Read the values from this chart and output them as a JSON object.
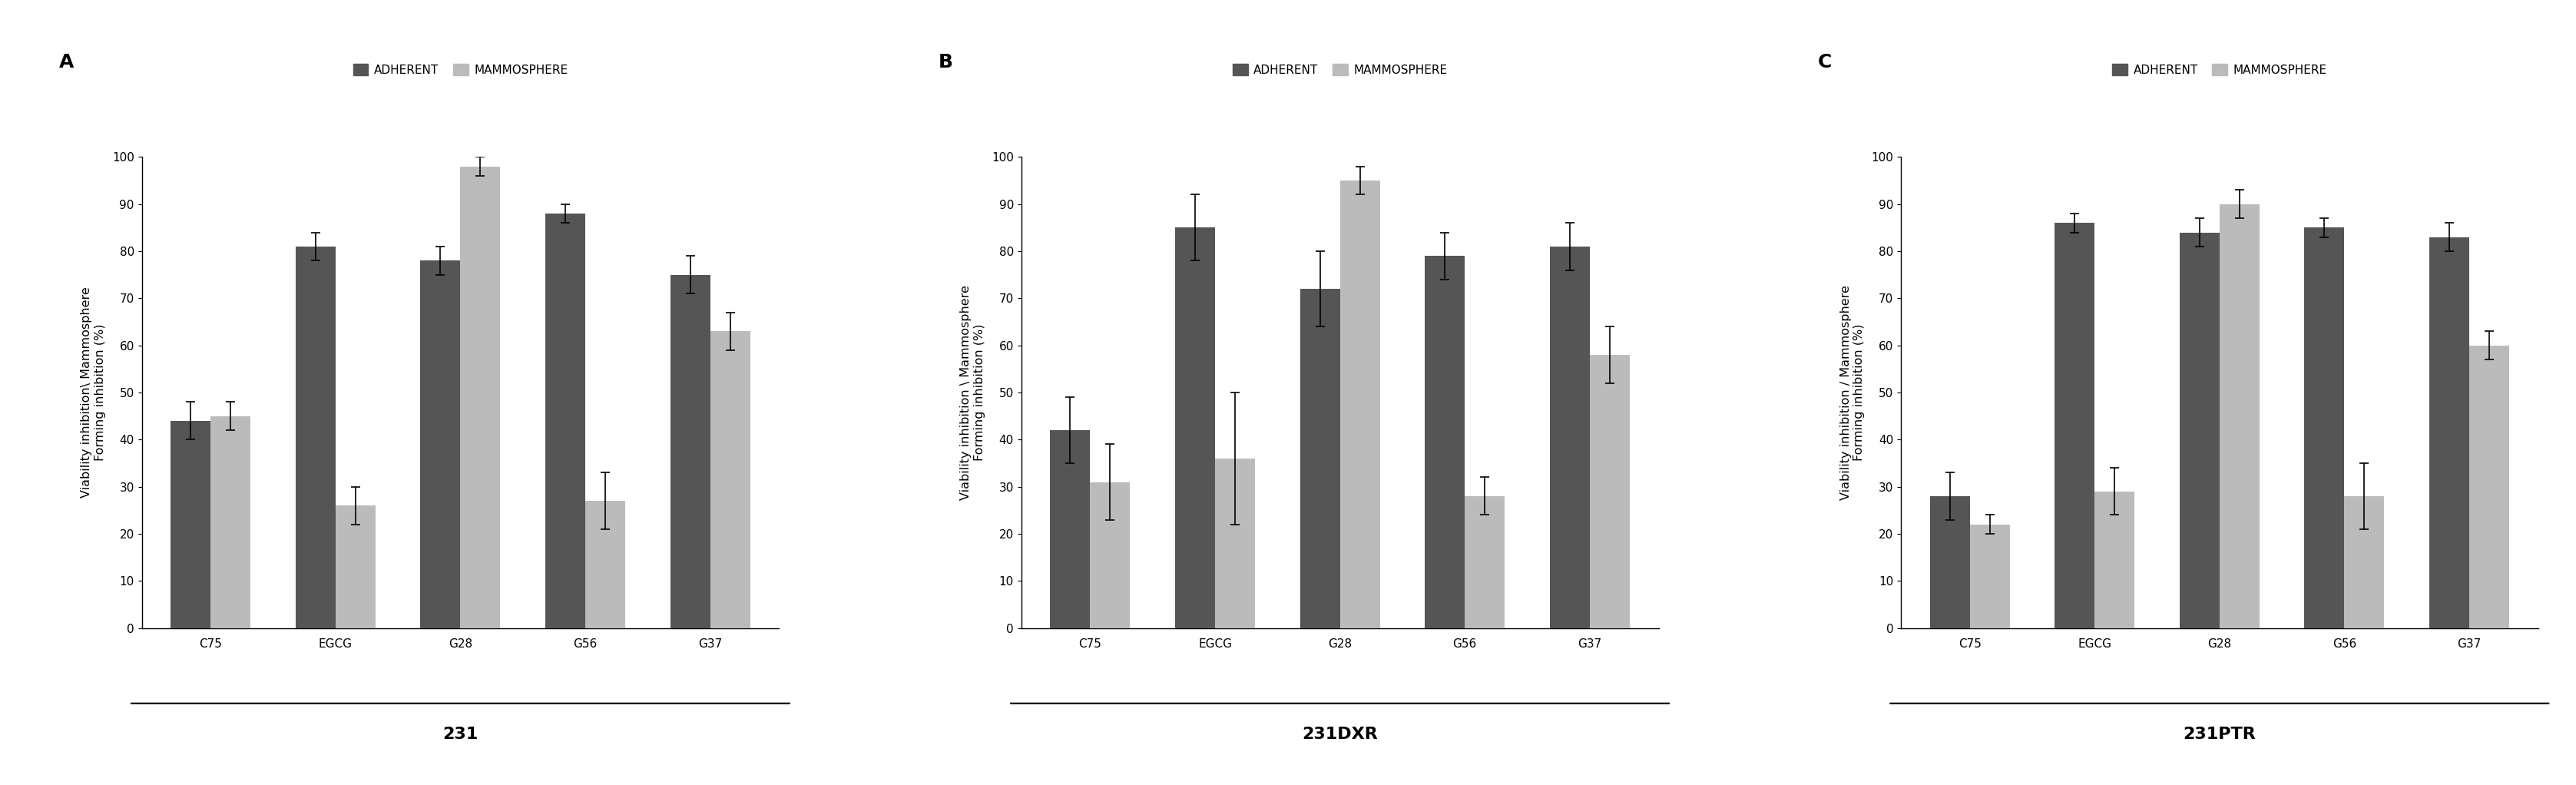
{
  "panels": [
    {
      "label": "A",
      "title": "231",
      "ylabel_line1": "Viability inhibition\\ Mammosphere",
      "ylabel_line2": "Forming inhibition (%)",
      "categories": [
        "C75",
        "EGCG",
        "G28",
        "G56",
        "G37"
      ],
      "adherent_values": [
        44,
        81,
        78,
        88,
        75
      ],
      "mammosphere_values": [
        45,
        26,
        98,
        27,
        63
      ],
      "adherent_errors": [
        4,
        3,
        3,
        2,
        4
      ],
      "mammosphere_errors": [
        3,
        4,
        2,
        6,
        4
      ]
    },
    {
      "label": "B",
      "title": "231DXR",
      "ylabel_line1": "Viability inhibition \\ Mammosphere",
      "ylabel_line2": "Forming inhibition (%)",
      "categories": [
        "C75",
        "EGCG",
        "G28",
        "G56",
        "G37"
      ],
      "adherent_values": [
        42,
        85,
        72,
        79,
        81
      ],
      "mammosphere_values": [
        31,
        36,
        95,
        28,
        58
      ],
      "adherent_errors": [
        7,
        7,
        8,
        5,
        5
      ],
      "mammosphere_errors": [
        8,
        14,
        3,
        4,
        6
      ]
    },
    {
      "label": "C",
      "title": "231PTR",
      "ylabel_line1": "Viability inhibition / Mammosphere",
      "ylabel_line2": "Forming inhibition (%)",
      "categories": [
        "C75",
        "EGCG",
        "G28",
        "G56",
        "G37"
      ],
      "adherent_values": [
        28,
        86,
        84,
        85,
        83
      ],
      "mammosphere_values": [
        22,
        29,
        90,
        28,
        60
      ],
      "adherent_errors": [
        5,
        2,
        3,
        2,
        3
      ],
      "mammosphere_errors": [
        2,
        5,
        3,
        7,
        3
      ]
    }
  ],
  "adherent_color": "#555555",
  "mammosphere_color": "#bbbbbb",
  "legend_labels": [
    "ADHERENT",
    "MAMMOSPHERE"
  ],
  "ylim": [
    0,
    100
  ],
  "yticks": [
    0,
    10,
    20,
    30,
    40,
    50,
    60,
    70,
    80,
    90,
    100
  ],
  "bar_width": 0.32,
  "ylabel_fontsize": 11.5,
  "tick_fontsize": 11,
  "legend_fontsize": 11,
  "panel_label_fontsize": 18,
  "subtitle_fontsize": 16
}
